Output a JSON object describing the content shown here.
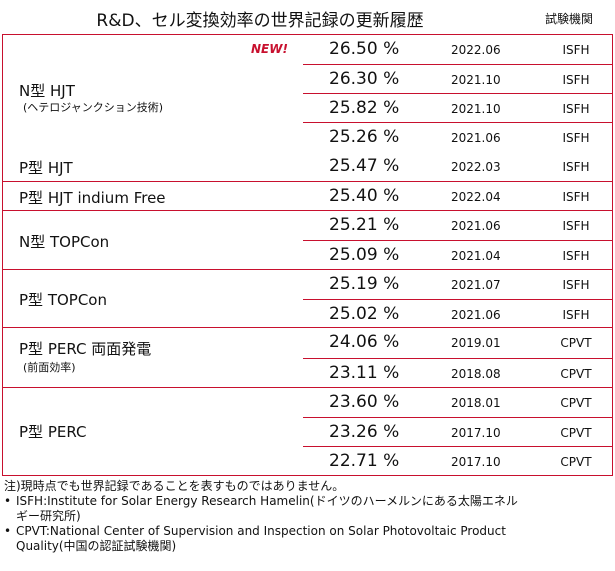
{
  "header": {
    "title": "R&D、セル変換効率の世界記録の更新履歴",
    "org_column": "試験機関"
  },
  "badge_new": "NEW!",
  "groups": [
    {
      "label": "N型 HJT",
      "sublabel": "(ヘテロジャンクション技術)",
      "rows": [
        {
          "value": "26.50 %",
          "date": "2022.06",
          "org": "ISFH"
        },
        {
          "value": "26.30 %",
          "date": "2021.10",
          "org": "ISFH"
        },
        {
          "value": "25.82 %",
          "date": "2021.10",
          "org": "ISFH"
        },
        {
          "value": "25.26 %",
          "date": "2021.06",
          "org": "ISFH"
        }
      ]
    },
    {
      "label": "P型 HJT",
      "rows": [
        {
          "value": "25.47 %",
          "date": "2022.03",
          "org": "ISFH"
        }
      ]
    },
    {
      "label": "P型 HJT indium Free",
      "rows": [
        {
          "value": "25.40 %",
          "date": "2022.04",
          "org": "ISFH"
        }
      ]
    },
    {
      "label": "N型 TOPCon",
      "rows": [
        {
          "value": "25.21 %",
          "date": "2021.06",
          "org": "ISFH"
        },
        {
          "value": "25.09 %",
          "date": "2021.04",
          "org": "ISFH"
        }
      ]
    },
    {
      "label": "P型 TOPCon",
      "rows": [
        {
          "value": "25.19 %",
          "date": "2021.07",
          "org": "ISFH"
        },
        {
          "value": "25.02 %",
          "date": "2021.06",
          "org": "ISFH"
        }
      ]
    },
    {
      "label": "P型 PERC 両面発電",
      "sublabel": "(前面効率)",
      "rows": [
        {
          "value": "24.06 %",
          "date": "2019.01",
          "org": "CPVT"
        },
        {
          "value": "23.11 %",
          "date": "2018.08",
          "org": "CPVT"
        }
      ]
    },
    {
      "label": "P型 PERC",
      "rows": [
        {
          "value": "23.60 %",
          "date": "2018.01",
          "org": "CPVT"
        },
        {
          "value": "23.26 %",
          "date": "2017.10",
          "org": "CPVT"
        },
        {
          "value": "22.71 %",
          "date": "2017.10",
          "org": "CPVT"
        }
      ]
    }
  ],
  "notes": {
    "note": "注)現時点でも世界記録であることを表すものではありません。",
    "bullet_mark": "•",
    "isfh_line1": "ISFH:Institute for Solar Energy Research Hamelin(ドイツのハーメルンにある太陽エネル",
    "isfh_line2": "ギー研究所)",
    "cpvt_line1": "CPVT:National Center of Supervision and Inspection on Solar Photovoltaic Product",
    "cpvt_line2": "Quality(中国の認証試験機関)"
  }
}
